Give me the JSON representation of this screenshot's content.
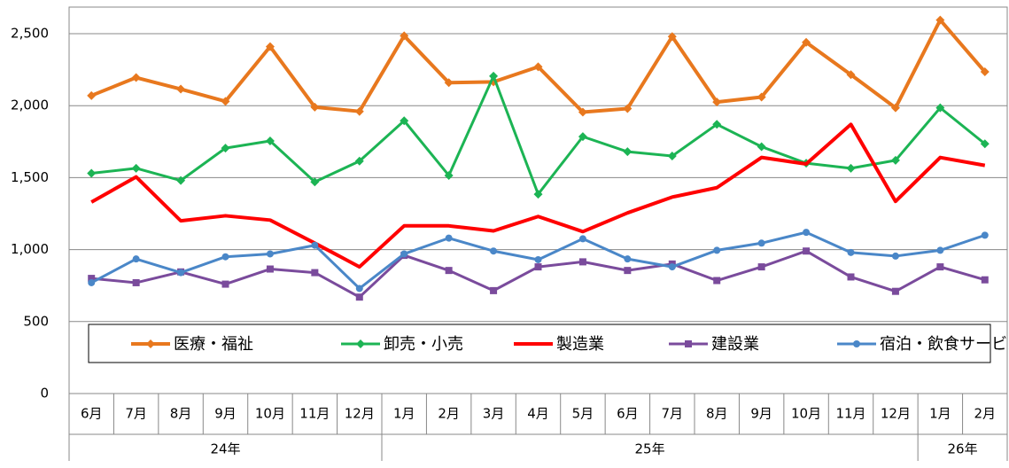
{
  "chart_data": {
    "type": "line",
    "category_groups": [
      {
        "label": "24年",
        "months": [
          "6月",
          "7月",
          "8月",
          "9月",
          "10月",
          "11月",
          "12月"
        ]
      },
      {
        "label": "25年",
        "months": [
          "1月",
          "2月",
          "3月",
          "4月",
          "5月",
          "6月",
          "7月",
          "8月",
          "9月",
          "10月",
          "11月",
          "12月"
        ]
      },
      {
        "label": "26年",
        "months": [
          "1月",
          "2月"
        ]
      }
    ],
    "series": [
      {
        "name": "医療・福祉",
        "color": "#e8781e",
        "marker": "diamond",
        "width": 4,
        "values": [
          2070,
          2195,
          2115,
          2030,
          2410,
          1990,
          1960,
          2485,
          2160,
          2165,
          2270,
          1955,
          1980,
          2480,
          2025,
          2060,
          2440,
          2215,
          1985,
          2595,
          2235
        ]
      },
      {
        "name": "卸売・小売",
        "color": "#1cb454",
        "marker": "diamond",
        "width": 3,
        "values": [
          1530,
          1565,
          1480,
          1705,
          1755,
          1470,
          1615,
          1895,
          1515,
          2205,
          1385,
          1785,
          1680,
          1650,
          1870,
          1715,
          1600,
          1565,
          1620,
          1985,
          1735
        ]
      },
      {
        "name": "製造業",
        "color": "#ff0000",
        "marker": "none",
        "width": 4,
        "values": [
          1330,
          1505,
          1200,
          1235,
          1205,
          1045,
          880,
          1165,
          1165,
          1130,
          1230,
          1125,
          1255,
          1365,
          1430,
          1640,
          1595,
          1870,
          1335,
          1640,
          1585
        ]
      },
      {
        "name": "建設業",
        "color": "#7a4b9c",
        "marker": "square",
        "width": 3,
        "values": [
          800,
          770,
          845,
          760,
          865,
          840,
          670,
          960,
          855,
          715,
          880,
          915,
          855,
          900,
          785,
          880,
          990,
          810,
          710,
          880,
          790
        ]
      },
      {
        "name": "宿泊・飲食サービス",
        "color": "#4a87c8",
        "marker": "circle",
        "width": 3,
        "values": [
          770,
          935,
          840,
          950,
          970,
          1030,
          730,
          970,
          1080,
          990,
          930,
          1075,
          935,
          880,
          995,
          1045,
          1120,
          980,
          955,
          995,
          1100
        ]
      }
    ],
    "ylim": [
      0,
      2500
    ],
    "yticks": [
      0,
      500,
      {
        "value": 1000,
        "label": "1,000"
      },
      {
        "value": 1500,
        "label": "1,500"
      },
      {
        "value": 2000,
        "label": "2,000"
      },
      {
        "value": 2500,
        "label": "2,500"
      }
    ],
    "grid": true
  }
}
